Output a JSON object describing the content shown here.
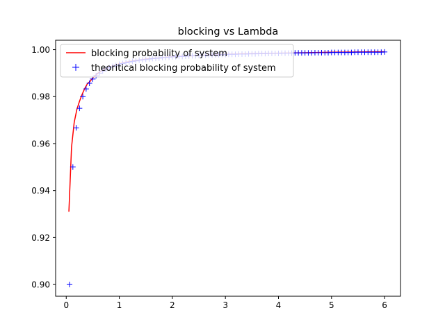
{
  "chart_data": {
    "type": "line",
    "title": "blocking vs Lambda",
    "xlabel": "",
    "ylabel": "",
    "xlim": [
      -0.2,
      6.3
    ],
    "ylim": [
      0.895,
      1.004
    ],
    "xticks": [
      0,
      1,
      2,
      3,
      4,
      5,
      6
    ],
    "xtick_labels": [
      "0",
      "1",
      "2",
      "3",
      "4",
      "5",
      "6"
    ],
    "yticks": [
      0.9,
      0.92,
      0.94,
      0.96,
      0.98,
      1.0
    ],
    "ytick_labels": [
      "0.90",
      "0.92",
      "0.94",
      "0.96",
      "0.98",
      "1.00"
    ],
    "grid": false,
    "legend_position": "top-left",
    "series": [
      {
        "name": "blocking probability of system",
        "style": "line",
        "color": "#ff0000",
        "x": [
          0.05,
          0.1,
          0.15,
          0.2,
          0.25,
          0.3,
          0.35,
          0.4,
          0.45,
          0.5,
          0.6,
          0.7,
          0.8,
          1.0,
          1.2,
          1.5,
          2.0,
          2.5,
          3.0,
          3.5,
          4.0,
          4.5,
          5.0,
          5.5,
          6.0
        ],
        "y": [
          0.931,
          0.9585,
          0.969,
          0.9745,
          0.978,
          0.981,
          0.9835,
          0.9855,
          0.9865,
          0.988,
          0.99,
          0.9915,
          0.9925,
          0.994,
          0.995,
          0.996,
          0.997,
          0.9975,
          0.998,
          0.9983,
          0.9985,
          0.9987,
          0.9989,
          0.999,
          0.9991
        ]
      },
      {
        "name": "theoritical blocking probability of system",
        "style": "plus-markers",
        "color": "#0000ff",
        "x": [
          0.0625,
          0.125,
          0.1875,
          0.25,
          0.3125,
          0.375,
          0.4375,
          0.5,
          0.5625,
          0.625,
          0.6875,
          0.75,
          0.8125,
          0.875,
          0.9375,
          1.0,
          1.0625,
          1.125,
          1.1875,
          1.25,
          1.3125,
          1.375,
          1.4375,
          1.5,
          1.5625,
          1.625,
          1.6875,
          1.75,
          1.8125,
          1.875,
          1.9375,
          2.0,
          2.0625,
          2.125,
          2.1875,
          2.25,
          2.3125,
          2.375,
          2.4375,
          2.5,
          2.5625,
          2.625,
          2.6875,
          2.75,
          2.8125,
          2.875,
          2.9375,
          3.0,
          3.0625,
          3.125,
          3.1875,
          3.25,
          3.3125,
          3.375,
          3.4375,
          3.5,
          3.5625,
          3.625,
          3.6875,
          3.75,
          3.8125,
          3.875,
          3.9375,
          4.0,
          4.0625,
          4.125,
          4.1875,
          4.25,
          4.3125,
          4.375,
          4.4375,
          4.5,
          4.5625,
          4.625,
          4.6875,
          4.75,
          4.8125,
          4.875,
          4.9375,
          5.0,
          5.0625,
          5.125,
          5.1875,
          5.25,
          5.3125,
          5.375,
          5.4375,
          5.5,
          5.5625,
          5.625,
          5.6875,
          5.75,
          5.8125,
          5.875,
          5.9375,
          6.0
        ],
        "y": [
          0.9,
          0.95,
          0.9667,
          0.975,
          0.98,
          0.9833,
          0.9857,
          0.9875,
          0.9889,
          0.99,
          0.9909,
          0.9917,
          0.9923,
          0.9929,
          0.9933,
          0.9938,
          0.9941,
          0.9944,
          0.9947,
          0.995,
          0.9952,
          0.9955,
          0.9957,
          0.9958,
          0.996,
          0.9962,
          0.9963,
          0.9964,
          0.9966,
          0.9967,
          0.9968,
          0.9969,
          0.997,
          0.9971,
          0.9971,
          0.9972,
          0.9973,
          0.9974,
          0.9974,
          0.9975,
          0.9976,
          0.9976,
          0.9977,
          0.9977,
          0.9978,
          0.9978,
          0.9979,
          0.9979,
          0.998,
          0.998,
          0.998,
          0.9981,
          0.9981,
          0.9981,
          0.9982,
          0.9982,
          0.9982,
          0.9983,
          0.9983,
          0.9983,
          0.9984,
          0.9984,
          0.9984,
          0.9984,
          0.9985,
          0.9985,
          0.9985,
          0.9985,
          0.9986,
          0.9986,
          0.9986,
          0.9986,
          0.9986,
          0.9986,
          0.9987,
          0.9987,
          0.9987,
          0.9987,
          0.9987,
          0.9988,
          0.9988,
          0.9988,
          0.9988,
          0.9988,
          0.9988,
          0.9988,
          0.9989,
          0.9989,
          0.9989,
          0.9989,
          0.9989,
          0.9989,
          0.9989,
          0.9989,
          0.9989,
          0.999
        ]
      }
    ]
  }
}
